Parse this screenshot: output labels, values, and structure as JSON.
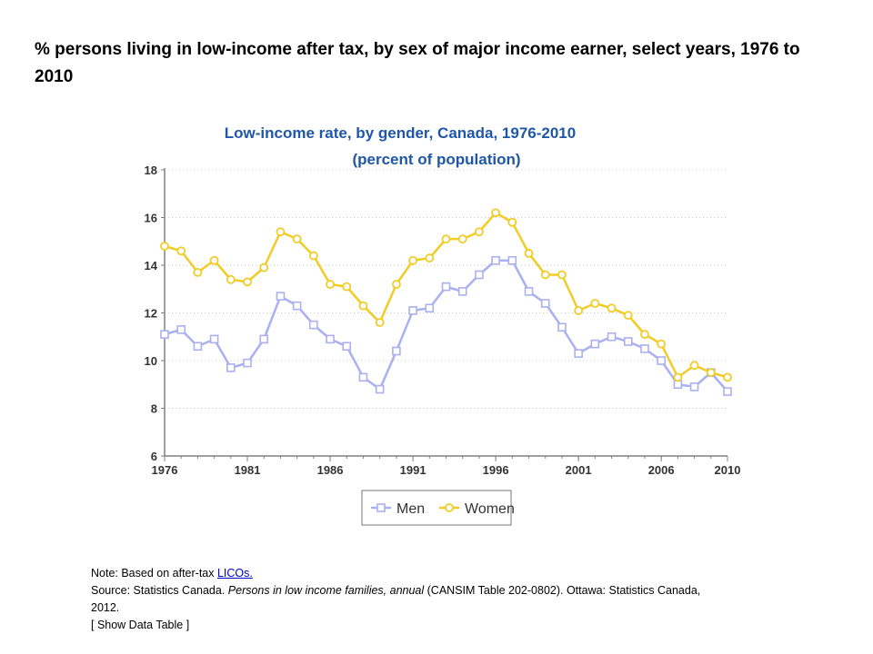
{
  "page": {
    "title": "% persons living in low-income after tax, by sex of major income earner, select years, 1976 to 2010"
  },
  "notes": {
    "note_prefix": "Note: Based on after-tax ",
    "note_link": "LICOs.",
    "source_prefix": "Source: Statistics Canada. ",
    "source_title": "Persons in low income families, annual",
    "source_suffix": " (CANSIM Table 202-0802). Ottawa: Statistics Canada, 2012.",
    "show_table": "[ Show Data Table ]"
  },
  "colors": {
    "men": "#aab0f0",
    "women": "#f2cc26",
    "title": "#1f57a8",
    "axis": "#808080"
  },
  "chart_data": {
    "type": "line",
    "title": "Low-income rate, by gender, Canada, 1976-2010",
    "subtitle": "(percent of population)",
    "xlabel": "",
    "ylabel": "",
    "ylim": [
      6,
      18
    ],
    "yticks": [
      6,
      8,
      10,
      12,
      14,
      16,
      18
    ],
    "xlim": [
      1976,
      2010
    ],
    "xticks": [
      1976,
      1981,
      1986,
      1991,
      1996,
      2001,
      2006,
      2010
    ],
    "grid": "horizontal dotted",
    "legend": "bottom",
    "x": [
      1976,
      1977,
      1978,
      1979,
      1980,
      1981,
      1982,
      1983,
      1984,
      1985,
      1986,
      1987,
      1988,
      1989,
      1990,
      1991,
      1992,
      1993,
      1994,
      1995,
      1996,
      1997,
      1998,
      1999,
      2000,
      2001,
      2002,
      2003,
      2004,
      2005,
      2006,
      2007,
      2008,
      2009,
      2010
    ],
    "series": [
      {
        "name": "Men",
        "marker": "square",
        "values": [
          11.1,
          11.3,
          10.6,
          10.9,
          9.7,
          9.9,
          10.9,
          12.7,
          12.3,
          11.5,
          10.9,
          10.6,
          9.3,
          8.8,
          10.4,
          12.1,
          12.2,
          13.1,
          12.9,
          13.6,
          14.2,
          14.2,
          12.9,
          12.4,
          11.4,
          10.3,
          10.7,
          11.0,
          10.8,
          10.5,
          10.0,
          9.0,
          8.9,
          9.5,
          8.7
        ]
      },
      {
        "name": "Women",
        "marker": "circle",
        "values": [
          14.8,
          14.6,
          13.7,
          14.2,
          13.4,
          13.3,
          13.9,
          15.4,
          15.1,
          14.4,
          13.2,
          13.1,
          12.3,
          11.6,
          13.2,
          14.2,
          14.3,
          15.1,
          15.1,
          15.4,
          16.2,
          15.8,
          14.5,
          13.6,
          13.6,
          12.1,
          12.4,
          12.2,
          11.9,
          11.1,
          10.7,
          9.3,
          9.8,
          9.5,
          9.3
        ]
      }
    ]
  }
}
